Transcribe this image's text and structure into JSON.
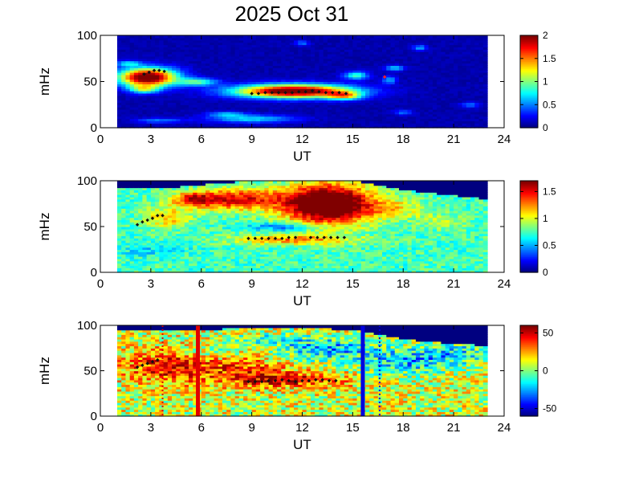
{
  "title": "2025 Oct 31",
  "chart_data": [
    {
      "type": "heatmap",
      "xlabel": "UT",
      "ylabel": "mHz",
      "xlim": [
        0,
        24
      ],
      "ylim": [
        0,
        100
      ],
      "xticks": [
        "0",
        "3",
        "6",
        "9",
        "12",
        "15",
        "18",
        "21",
        "24"
      ],
      "yticks": [
        "0",
        "50",
        "100"
      ],
      "data_range_x": [
        1,
        23
      ],
      "colorbar": {
        "min": 0,
        "max": 2,
        "ticks": [
          "0",
          "0.5",
          "1",
          "1.5",
          "2"
        ],
        "colormap": "jet"
      },
      "background_level": 0.05,
      "blobs": [
        {
          "x": 2.8,
          "y": 55,
          "sx": 1.2,
          "sy": 7,
          "v": 2.2
        },
        {
          "x": 2.6,
          "y": 42,
          "sx": 0.6,
          "sy": 3,
          "v": 0.8
        },
        {
          "x": 1.7,
          "y": 70,
          "sx": 0.5,
          "sy": 2,
          "v": 0.6
        },
        {
          "x": 5.8,
          "y": 50,
          "sx": 0.8,
          "sy": 3,
          "v": 0.8
        },
        {
          "x": 11.5,
          "y": 40,
          "sx": 2.4,
          "sy": 5,
          "v": 2.2
        },
        {
          "x": 14.5,
          "y": 35,
          "sx": 0.7,
          "sy": 3,
          "v": 1.0
        },
        {
          "x": 9.0,
          "y": 10,
          "sx": 1.8,
          "sy": 3,
          "v": 0.6
        },
        {
          "x": 7.5,
          "y": 15,
          "sx": 0.8,
          "sy": 2,
          "v": 0.5
        },
        {
          "x": 3.5,
          "y": 8,
          "sx": 1.0,
          "sy": 2,
          "v": 0.4
        },
        {
          "x": 15.2,
          "y": 57,
          "sx": 0.5,
          "sy": 3,
          "v": 0.8
        },
        {
          "x": 17.5,
          "y": 65,
          "sx": 0.4,
          "sy": 2,
          "v": 0.6
        },
        {
          "x": 17.2,
          "y": 52,
          "sx": 0.3,
          "sy": 3,
          "v": 0.5
        },
        {
          "x": 18.0,
          "y": 17,
          "sx": 0.4,
          "sy": 2,
          "v": 0.4
        },
        {
          "x": 22.0,
          "y": 25,
          "sx": 0.4,
          "sy": 2,
          "v": 0.4
        },
        {
          "x": 19.0,
          "y": 87,
          "sx": 0.3,
          "sy": 2,
          "v": 0.5
        },
        {
          "x": 12.0,
          "y": 92,
          "sx": 0.3,
          "sy": 2,
          "v": 0.4
        }
      ],
      "markers": [
        {
          "color": "black",
          "x": [
            2.6,
            2.9,
            3.2,
            3.5,
            3.8
          ],
          "y": [
            58,
            60,
            62,
            62,
            61
          ]
        },
        {
          "color": "black",
          "x": [
            9.0,
            9.4,
            9.8,
            10.2,
            10.6,
            11.0,
            11.4,
            11.8,
            12.2,
            12.6,
            13.0,
            13.4,
            13.8,
            14.2,
            14.6
          ],
          "y": [
            37,
            37,
            38,
            38,
            38,
            38,
            38,
            39,
            39,
            40,
            39,
            38,
            38,
            38,
            37
          ]
        },
        {
          "color": "red",
          "x": [
            16.9
          ],
          "y": [
            55
          ]
        }
      ]
    },
    {
      "type": "heatmap",
      "xlabel": "UT",
      "ylabel": "mHz",
      "xlim": [
        0,
        24
      ],
      "ylim": [
        0,
        100
      ],
      "xticks": [
        "0",
        "3",
        "6",
        "9",
        "12",
        "15",
        "18",
        "21",
        "24"
      ],
      "yticks": [
        "0",
        "50",
        "100"
      ],
      "data_range_x": [
        1,
        23
      ],
      "colorbar": {
        "min": 0,
        "max": 1.7,
        "ticks": [
          "0",
          "0.5",
          "1",
          "1.5"
        ],
        "colormap": "jet"
      },
      "background_level": 0.75,
      "noise_amplitude": 0.15,
      "top_cutoff": [
        [
          1,
          92
        ],
        [
          4,
          92
        ],
        [
          6,
          96
        ],
        [
          9,
          100
        ],
        [
          12,
          100
        ],
        [
          15,
          100
        ],
        [
          18,
          90
        ],
        [
          21,
          84
        ],
        [
          23,
          80
        ]
      ],
      "blobs": [
        {
          "x": 8.0,
          "y": 80,
          "sx": 2.0,
          "sy": 8,
          "v": 0.8
        },
        {
          "x": 13.5,
          "y": 75,
          "sx": 1.8,
          "sy": 15,
          "v": 1.4
        },
        {
          "x": 5.5,
          "y": 80,
          "sx": 0.8,
          "sy": 5,
          "v": 0.6
        },
        {
          "x": 4.0,
          "y": 60,
          "sx": 1.0,
          "sy": 8,
          "v": 0.4
        },
        {
          "x": 11.0,
          "y": 50,
          "sx": 1.5,
          "sy": 3,
          "v": -0.4
        },
        {
          "x": 11.5,
          "y": 36,
          "sx": 2.5,
          "sy": 4,
          "v": 0.5
        },
        {
          "x": 17.5,
          "y": 70,
          "sx": 1.5,
          "sy": 8,
          "v": 0.3
        },
        {
          "x": 3.0,
          "y": 25,
          "sx": 1.5,
          "sy": 6,
          "v": -0.15
        },
        {
          "x": 20.5,
          "y": 55,
          "sx": 1.0,
          "sy": 6,
          "v": 0.2
        }
      ],
      "markers": [
        {
          "color": "black",
          "x": [
            2.2,
            2.5,
            2.8,
            3.1,
            3.4,
            3.7
          ],
          "y": [
            52,
            55,
            57,
            59,
            62,
            62
          ]
        },
        {
          "color": "black",
          "x": [
            8.8,
            9.2,
            9.6,
            10.0,
            10.4,
            10.8,
            11.2,
            11.6
          ],
          "y": [
            37,
            37,
            37,
            37,
            37,
            37,
            38,
            38
          ]
        },
        {
          "color": "black",
          "x": [
            12.5,
            12.9,
            13.3,
            13.7,
            14.1,
            14.5
          ],
          "y": [
            38,
            38,
            38,
            38,
            38,
            38
          ]
        }
      ]
    },
    {
      "type": "heatmap",
      "xlabel": "UT",
      "ylabel": "mHz",
      "xlim": [
        0,
        24
      ],
      "ylim": [
        0,
        100
      ],
      "xticks": [
        "0",
        "3",
        "6",
        "9",
        "12",
        "15",
        "18",
        "21",
        "24"
      ],
      "yticks": [
        "0",
        "50",
        "100"
      ],
      "data_range_x": [
        1,
        23
      ],
      "colorbar": {
        "min": -60,
        "max": 60,
        "ticks": [
          "-50",
          "0",
          "50"
        ],
        "colormap": "jet"
      },
      "background_level": 10,
      "noise_amplitude": 22,
      "top_cutoff": [
        [
          1,
          95
        ],
        [
          6,
          95
        ],
        [
          9,
          98
        ],
        [
          12,
          98
        ],
        [
          15,
          95
        ],
        [
          18,
          85
        ],
        [
          21,
          80
        ],
        [
          23,
          78
        ]
      ],
      "blobs": [
        {
          "x": 4.5,
          "y": 55,
          "sx": 2.0,
          "sy": 12,
          "v": 40
        },
        {
          "x": 9.0,
          "y": 50,
          "sx": 1.5,
          "sy": 10,
          "v": 25
        },
        {
          "x": 11.5,
          "y": 40,
          "sx": 2.5,
          "sy": 6,
          "v": 35
        },
        {
          "x": 13.5,
          "y": 75,
          "sx": 2.0,
          "sy": 8,
          "v": -35
        },
        {
          "x": 18.0,
          "y": 60,
          "sx": 2.0,
          "sy": 10,
          "v": -30
        },
        {
          "x": 21.0,
          "y": 70,
          "sx": 1.5,
          "sy": 8,
          "v": -25
        },
        {
          "x": 10.0,
          "y": 85,
          "sx": 1.5,
          "sy": 4,
          "v": -20
        },
        {
          "x": 6.5,
          "y": 70,
          "sx": 1.0,
          "sy": 6,
          "v": -15
        }
      ],
      "vlines": [
        {
          "x": 5.8,
          "color": "red",
          "style": "solid"
        },
        {
          "x": 15.6,
          "color": "blue",
          "style": "solid"
        },
        {
          "x": 3.7,
          "color": "red",
          "style": "dotted"
        },
        {
          "x": 16.6,
          "color": "blue",
          "style": "dotted"
        }
      ],
      "markers": [
        {
          "color": "black",
          "x": [
            2.2,
            2.5,
            2.8,
            3.1,
            3.4
          ],
          "y": [
            54,
            56,
            58,
            60,
            62
          ]
        },
        {
          "color": "black",
          "x": [
            8.8,
            9.2,
            9.6,
            10.0,
            10.4,
            10.8,
            11.2,
            11.6,
            12.0,
            12.4,
            12.8,
            13.2,
            13.6,
            14.0
          ],
          "y": [
            38,
            38,
            38,
            39,
            39,
            40,
            39,
            38,
            39,
            39,
            40,
            40,
            39,
            39
          ]
        }
      ]
    }
  ]
}
